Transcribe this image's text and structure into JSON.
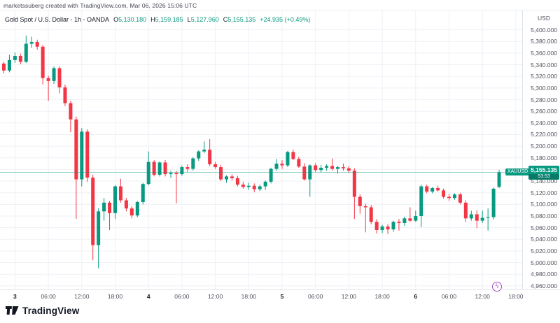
{
  "attribution": {
    "text": "marketssuberg created with TradingView.com, Mar 06, 2026 15:06 UTC"
  },
  "legend": {
    "title": "Gold Spot / U.S. Dollar - 1h - OANDA",
    "ohlc": [
      {
        "label": "O",
        "value": "5,130.180"
      },
      {
        "label": "H",
        "value": "5,159.185"
      },
      {
        "label": "L",
        "value": "5,127.960"
      },
      {
        "label": "C",
        "value": "5,155.135"
      }
    ],
    "change": "+24.935 (+0.49%)"
  },
  "price_scale": {
    "currency": "USD"
  },
  "time_scale": {
    "ticks": [
      {
        "i": 2,
        "label": "3",
        "major": true
      },
      {
        "i": 8,
        "label": "06:00",
        "major": false
      },
      {
        "i": 14,
        "label": "12:00",
        "major": false
      },
      {
        "i": 20,
        "label": "18:00",
        "major": false
      },
      {
        "i": 26,
        "label": "4",
        "major": true
      },
      {
        "i": 32,
        "label": "06:00",
        "major": false
      },
      {
        "i": 38,
        "label": "12:00",
        "major": false
      },
      {
        "i": 44,
        "label": "18:00",
        "major": false
      },
      {
        "i": 50,
        "label": "5",
        "major": true
      },
      {
        "i": 56,
        "label": "06:00",
        "major": false
      },
      {
        "i": 62,
        "label": "12:00",
        "major": false
      },
      {
        "i": 68,
        "label": "18:00",
        "major": false
      },
      {
        "i": 74,
        "label": "6",
        "major": true
      },
      {
        "i": 80,
        "label": "06:00",
        "major": false
      },
      {
        "i": 86,
        "label": "12:00",
        "major": false
      },
      {
        "i": 92,
        "label": "18:00",
        "major": false
      }
    ]
  },
  "price_label": {
    "symbol": "XAUUSD",
    "price": "5,155.135",
    "countdown": "53:53"
  },
  "status_icon": {
    "name": "realtime-flash",
    "glyph": "ϟ",
    "color": "#a64cc4"
  },
  "colors": {
    "up": "#089981",
    "down": "#F23645",
    "grid": "#eef1f6",
    "price_line": "rgba(8,153,129,0.45)"
  },
  "footer": {
    "brand": "TradingView"
  },
  "chart_data": {
    "type": "candlestick",
    "title": "Gold Spot / U.S. Dollar",
    "symbol": "XAUUSD",
    "exchange": "OANDA",
    "interval": "1h",
    "currency": "USD",
    "last_price": 5155.135,
    "change": 24.935,
    "change_pct": 0.49,
    "ylim": [
      4950,
      5410
    ],
    "y_ticks": [
      5400,
      5380,
      5360,
      5340,
      5320,
      5300,
      5280,
      5260,
      5240,
      5220,
      5200,
      5180,
      5160,
      5140,
      5120,
      5100,
      5080,
      5060,
      5040,
      5020,
      5000,
      4980,
      4960
    ],
    "x_unit": "1 candle = 1 hour; day labels 3,4,5,6 = Mar 3-6 2026",
    "candles_ohlc": [
      [
        5342,
        5345,
        5325,
        5330
      ],
      [
        5330,
        5357,
        5327,
        5348
      ],
      [
        5348,
        5361,
        5343,
        5355
      ],
      [
        5355,
        5359,
        5341,
        5345
      ],
      [
        5345,
        5390,
        5343,
        5376
      ],
      [
        5376,
        5388,
        5369,
        5379
      ],
      [
        5379,
        5383,
        5366,
        5371
      ],
      [
        5371,
        5374,
        5306,
        5317
      ],
      [
        5317,
        5321,
        5278,
        5312
      ],
      [
        5312,
        5337,
        5307,
        5334
      ],
      [
        5334,
        5337,
        5291,
        5301
      ],
      [
        5301,
        5306,
        5269,
        5274
      ],
      [
        5274,
        5278,
        5224,
        5246
      ],
      [
        5246,
        5251,
        5075,
        5143
      ],
      [
        5143,
        5231,
        5131,
        5225
      ],
      [
        5225,
        5229,
        5139,
        5146
      ],
      [
        5146,
        5151,
        5004,
        5030
      ],
      [
        5030,
        5093,
        4990,
        5088
      ],
      [
        5088,
        5111,
        5072,
        5103
      ],
      [
        5103,
        5106,
        5056,
        5085
      ],
      [
        5085,
        5133,
        5075,
        5131
      ],
      [
        5131,
        5144,
        5103,
        5107
      ],
      [
        5107,
        5111,
        5088,
        5093
      ],
      [
        5093,
        5097,
        5076,
        5081
      ],
      [
        5081,
        5106,
        5078,
        5104
      ],
      [
        5104,
        5137,
        5100,
        5135
      ],
      [
        5135,
        5191,
        5133,
        5173
      ],
      [
        5173,
        5176,
        5148,
        5151
      ],
      [
        5151,
        5174,
        5148,
        5172
      ],
      [
        5172,
        5176,
        5148,
        5152
      ],
      [
        5152,
        5158,
        5146,
        5154
      ],
      [
        5154,
        5157,
        5102,
        5152
      ],
      [
        5152,
        5167,
        5149,
        5164
      ],
      [
        5164,
        5169,
        5156,
        5161
      ],
      [
        5161,
        5181,
        5158,
        5179
      ],
      [
        5179,
        5193,
        5175,
        5191
      ],
      [
        5191,
        5208,
        5188,
        5194
      ],
      [
        5194,
        5212,
        5166,
        5169
      ],
      [
        5169,
        5173,
        5161,
        5164
      ],
      [
        5164,
        5168,
        5140,
        5143
      ],
      [
        5143,
        5150,
        5137,
        5148
      ],
      [
        5148,
        5152,
        5141,
        5145
      ],
      [
        5145,
        5149,
        5131,
        5134
      ],
      [
        5134,
        5139,
        5127,
        5130
      ],
      [
        5130,
        5137,
        5125,
        5132
      ],
      [
        5132,
        5136,
        5121,
        5126
      ],
      [
        5126,
        5134,
        5123,
        5131
      ],
      [
        5131,
        5141,
        5125,
        5139
      ],
      [
        5139,
        5163,
        5136,
        5161
      ],
      [
        5161,
        5178,
        5158,
        5170
      ],
      [
        5170,
        5176,
        5161,
        5167
      ],
      [
        5167,
        5192,
        5164,
        5190
      ],
      [
        5190,
        5194,
        5176,
        5178
      ],
      [
        5178,
        5182,
        5163,
        5165
      ],
      [
        5165,
        5171,
        5141,
        5143
      ],
      [
        5143,
        5169,
        5113,
        5167
      ],
      [
        5167,
        5171,
        5156,
        5159
      ],
      [
        5159,
        5168,
        5155,
        5163
      ],
      [
        5163,
        5169,
        5158,
        5166
      ],
      [
        5166,
        5179,
        5158,
        5161
      ],
      [
        5161,
        5166,
        5153,
        5164
      ],
      [
        5164,
        5170,
        5158,
        5162
      ],
      [
        5162,
        5166,
        5154,
        5158
      ],
      [
        5158,
        5162,
        5075,
        5113
      ],
      [
        5113,
        5117,
        5084,
        5097
      ],
      [
        5097,
        5101,
        5052,
        5095
      ],
      [
        5095,
        5099,
        5066,
        5070
      ],
      [
        5070,
        5075,
        5050,
        5056
      ],
      [
        5056,
        5065,
        5051,
        5062
      ],
      [
        5062,
        5066,
        5049,
        5057
      ],
      [
        5057,
        5072,
        5053,
        5070
      ],
      [
        5070,
        5075,
        5055,
        5068
      ],
      [
        5068,
        5079,
        5063,
        5076
      ],
      [
        5076,
        5095,
        5070,
        5072
      ],
      [
        5072,
        5089,
        5070,
        5080
      ],
      [
        5080,
        5134,
        5061,
        5131
      ],
      [
        5131,
        5134,
        5119,
        5122
      ],
      [
        5122,
        5130,
        5119,
        5128
      ],
      [
        5128,
        5132,
        5122,
        5124
      ],
      [
        5124,
        5127,
        5110,
        5113
      ],
      [
        5113,
        5118,
        5106,
        5111
      ],
      [
        5111,
        5119,
        5108,
        5117
      ],
      [
        5117,
        5120,
        5100,
        5103
      ],
      [
        5103,
        5107,
        5070,
        5076
      ],
      [
        5076,
        5089,
        5072,
        5083
      ],
      [
        5083,
        5090,
        5059,
        5072
      ],
      [
        5072,
        5089,
        5068,
        5077
      ],
      [
        5077,
        5093,
        5055,
        5078
      ],
      [
        5078,
        5129,
        5074,
        5127
      ],
      [
        5130.18,
        5159.185,
        5127.96,
        5155.135
      ]
    ]
  }
}
